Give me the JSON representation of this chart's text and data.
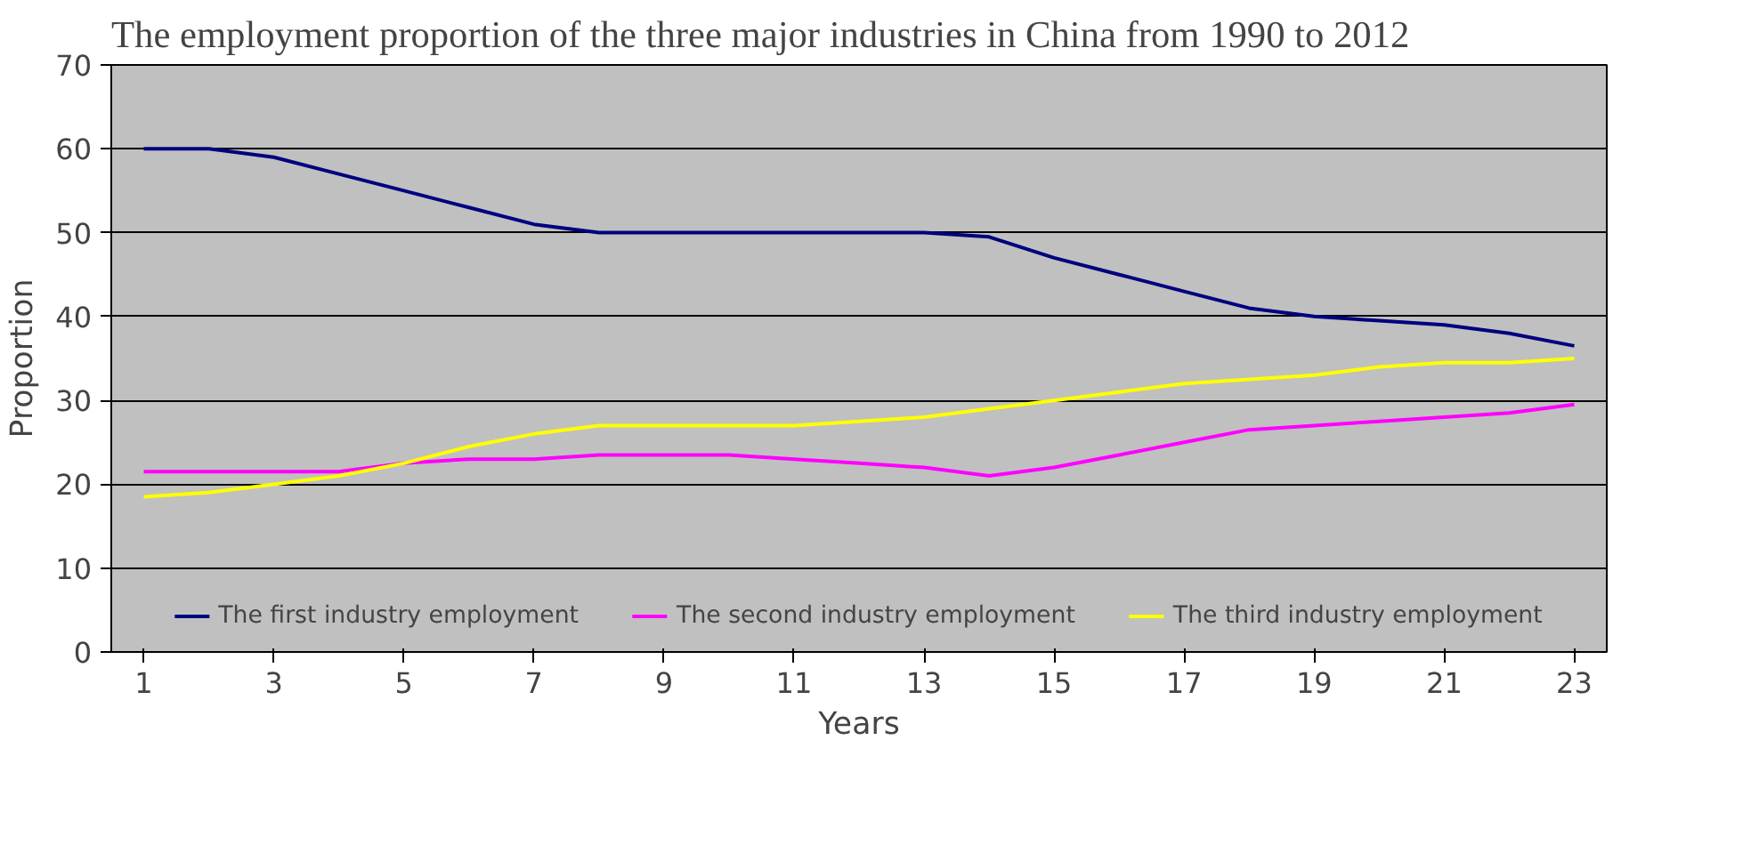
{
  "chart_data": {
    "type": "line",
    "title": "The employment proportion of the three major industries in China from 1990 to 2012",
    "xlabel": "Years",
    "ylabel": "Proportion",
    "x": [
      1,
      2,
      3,
      4,
      5,
      6,
      7,
      8,
      9,
      10,
      11,
      12,
      13,
      14,
      15,
      16,
      17,
      18,
      19,
      20,
      21,
      22,
      23
    ],
    "xlim": [
      0.5,
      23.5
    ],
    "xticks": [
      1,
      3,
      5,
      7,
      9,
      11,
      13,
      15,
      17,
      19,
      21,
      23
    ],
    "ylim": [
      0,
      70
    ],
    "yticks": [
      0,
      10,
      20,
      30,
      40,
      50,
      60,
      70
    ],
    "grid": "y",
    "legend": "bottom",
    "marker": "none",
    "line_style": "solid",
    "series": [
      {
        "name": "The first industry employment",
        "color": "#000080",
        "values": [
          60,
          60,
          59,
          57,
          55,
          53,
          51,
          50,
          50,
          50,
          50,
          50,
          50,
          49.5,
          47,
          45,
          43,
          41,
          40,
          39.5,
          39,
          38,
          36.5
        ]
      },
      {
        "name": "The second industry employment",
        "color": "#ff00ff",
        "values": [
          21.5,
          21.5,
          21.5,
          21.5,
          22.5,
          23,
          23,
          23.5,
          23.5,
          23.5,
          23,
          22.5,
          22,
          21,
          22,
          23.5,
          25,
          26.5,
          27,
          27.5,
          28,
          28.5,
          29.5
        ]
      },
      {
        "name": "The third industry employment",
        "color": "#ffff00",
        "values": [
          18.5,
          19,
          20,
          21,
          22.5,
          24.5,
          26,
          27,
          27,
          27,
          27,
          27.5,
          28,
          29,
          30,
          31,
          32,
          32.5,
          33,
          34,
          34.5,
          34.5,
          35
        ]
      }
    ]
  }
}
